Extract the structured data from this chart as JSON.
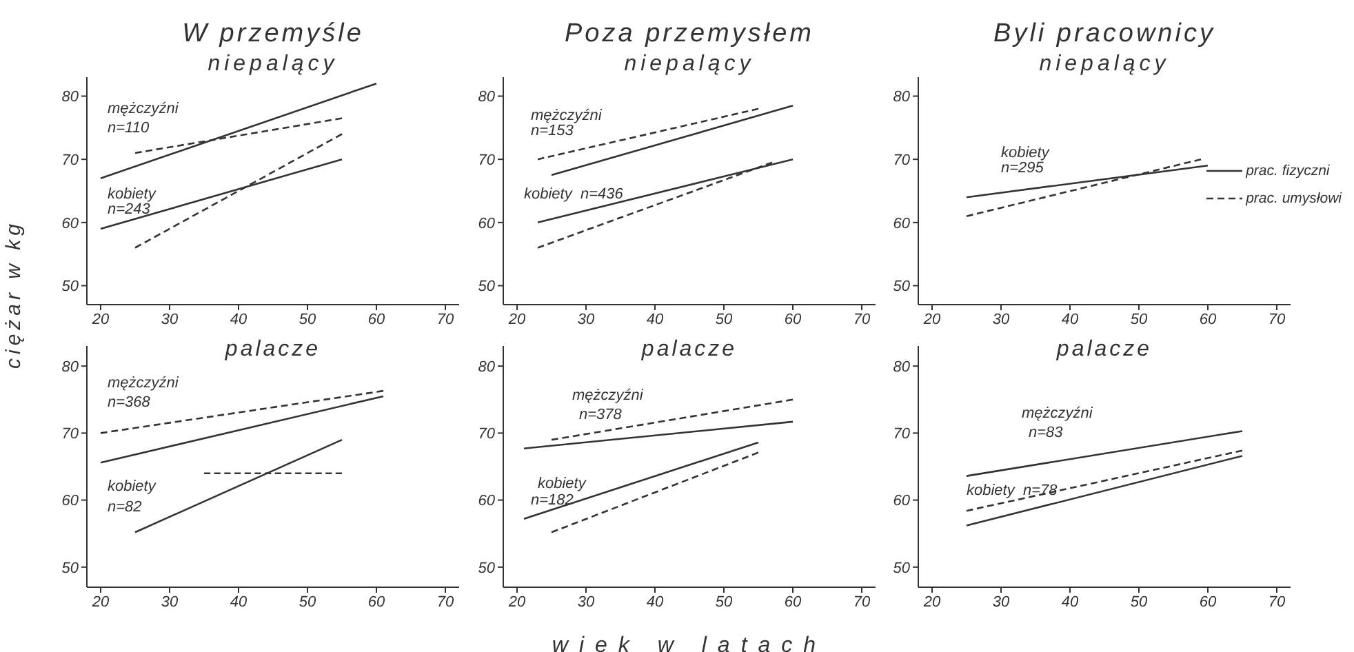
{
  "chart_data": [
    {
      "type": "line",
      "title": "W przemyśle",
      "subtitle": "niepalący",
      "xlim": [
        18,
        72
      ],
      "xticks": [
        20,
        30,
        40,
        50,
        60,
        70
      ],
      "ylim": [
        47,
        83
      ],
      "yticks": [
        50,
        60,
        70,
        80
      ],
      "grid": false,
      "legend": false,
      "marker": "none",
      "annotations": [
        "mężczyźni",
        "n=110",
        "kobiety",
        "n=243"
      ],
      "series": [
        {
          "color": "#333333",
          "line_style": "solid",
          "x": [
            20,
            60
          ],
          "values": [
            67,
            82
          ]
        },
        {
          "color": "#333333",
          "line_style": "dashed",
          "x": [
            25,
            55
          ],
          "values": [
            71,
            76.5
          ]
        },
        {
          "color": "#333333",
          "line_style": "solid",
          "x": [
            20,
            55
          ],
          "values": [
            59,
            70
          ]
        },
        {
          "color": "#333333",
          "line_style": "dashed",
          "x": [
            25,
            55
          ],
          "values": [
            56,
            74
          ]
        }
      ]
    },
    {
      "type": "line",
      "title": "Poza przemysłem",
      "subtitle": "niepalący",
      "xlim": [
        18,
        72
      ],
      "xticks": [
        20,
        30,
        40,
        50,
        60,
        70
      ],
      "ylim": [
        47,
        83
      ],
      "yticks": [
        50,
        60,
        70,
        80
      ],
      "grid": false,
      "legend": false,
      "marker": "none",
      "annotations": [
        "mężczyźni",
        "n=153",
        "kobiety  n=436"
      ],
      "series": [
        {
          "color": "#333333",
          "line_style": "dashed",
          "x": [
            23,
            55
          ],
          "values": [
            70,
            78
          ]
        },
        {
          "color": "#333333",
          "line_style": "solid",
          "x": [
            25,
            60
          ],
          "values": [
            67.5,
            78.5
          ]
        },
        {
          "color": "#333333",
          "line_style": "solid",
          "x": [
            23,
            60
          ],
          "values": [
            60,
            70
          ]
        },
        {
          "color": "#333333",
          "line_style": "dashed",
          "x": [
            23,
            57
          ],
          "values": [
            56,
            69.5
          ]
        }
      ]
    },
    {
      "type": "line",
      "title": "Byli pracownicy",
      "subtitle": "niepalący",
      "xlim": [
        18,
        72
      ],
      "xticks": [
        20,
        30,
        40,
        50,
        60,
        70
      ],
      "ylim": [
        47,
        83
      ],
      "yticks": [
        50,
        60,
        70,
        80
      ],
      "grid": false,
      "legend": "right",
      "marker": "none",
      "annotations": [
        "kobiety",
        "n=295"
      ],
      "series": [
        {
          "name": "prac. fizyczni",
          "color": "#333333",
          "line_style": "solid",
          "x": [
            25,
            60
          ],
          "values": [
            64,
            69
          ]
        },
        {
          "name": "prac. umysłowi",
          "color": "#333333",
          "line_style": "dashed",
          "x": [
            25,
            59
          ],
          "values": [
            61,
            70
          ]
        }
      ]
    },
    {
      "type": "line",
      "title": "palacze",
      "ylabel": "ciężar w kg",
      "xlim": [
        18,
        72
      ],
      "xticks": [
        20,
        30,
        40,
        50,
        60,
        70
      ],
      "ylim": [
        47,
        83
      ],
      "yticks": [
        50,
        60,
        70,
        80
      ],
      "grid": false,
      "legend": false,
      "marker": "none",
      "annotations": [
        "mężczyźni",
        "n=368",
        "kobiety",
        "n=82"
      ],
      "series": [
        {
          "color": "#333333",
          "line_style": "dashed",
          "x": [
            20,
            61
          ],
          "values": [
            70,
            76.3
          ]
        },
        {
          "color": "#333333",
          "line_style": "solid",
          "x": [
            20,
            61
          ],
          "values": [
            65.6,
            75.5
          ]
        },
        {
          "color": "#333333",
          "line_style": "solid",
          "x": [
            25,
            55
          ],
          "values": [
            55.2,
            69
          ]
        },
        {
          "color": "#333333",
          "line_style": "dashed",
          "x": [
            35,
            55
          ],
          "values": [
            64,
            64
          ]
        }
      ]
    },
    {
      "type": "line",
      "title": "palacze",
      "xlabel": "wiek w latach",
      "xlim": [
        18,
        72
      ],
      "xticks": [
        20,
        30,
        40,
        50,
        60,
        70
      ],
      "ylim": [
        47,
        83
      ],
      "yticks": [
        50,
        60,
        70,
        80
      ],
      "grid": false,
      "legend": false,
      "marker": "none",
      "annotations": [
        "mężczyźni",
        "n=378",
        "kobiety",
        "n=182"
      ],
      "series": [
        {
          "color": "#333333",
          "line_style": "dashed",
          "x": [
            25,
            60
          ],
          "values": [
            69,
            75
          ]
        },
        {
          "color": "#333333",
          "line_style": "solid",
          "x": [
            21,
            60
          ],
          "values": [
            67.7,
            71.7
          ]
        },
        {
          "color": "#333333",
          "line_style": "solid",
          "x": [
            21,
            55
          ],
          "values": [
            57.2,
            68.6
          ]
        },
        {
          "color": "#333333",
          "line_style": "dashed",
          "x": [
            25,
            55
          ],
          "values": [
            55.2,
            67.1
          ]
        }
      ]
    },
    {
      "type": "line",
      "title": "palacze",
      "xlim": [
        18,
        72
      ],
      "xticks": [
        20,
        30,
        40,
        50,
        60,
        70
      ],
      "ylim": [
        47,
        83
      ],
      "yticks": [
        50,
        60,
        70,
        80
      ],
      "grid": false,
      "legend": false,
      "marker": "none",
      "annotations": [
        "mężczyźni",
        "n=83",
        "kobiety  n=78"
      ],
      "series": [
        {
          "color": "#333333",
          "line_style": "solid",
          "x": [
            25,
            65
          ],
          "values": [
            63.6,
            70.3
          ]
        },
        {
          "color": "#333333",
          "line_style": "dashed",
          "x": [
            25,
            65
          ],
          "values": [
            58.4,
            67.4
          ]
        },
        {
          "color": "#333333",
          "line_style": "solid",
          "x": [
            25,
            65
          ],
          "values": [
            56.2,
            66.6
          ]
        }
      ]
    }
  ]
}
